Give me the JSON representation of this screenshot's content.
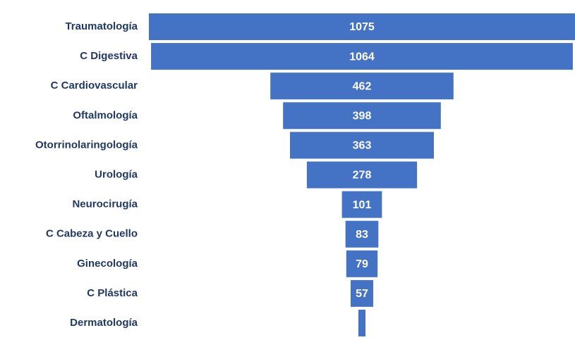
{
  "chart_data": {
    "type": "funnel",
    "categories": [
      "Traumatología",
      "C Digestiva",
      "C Cardiovascular",
      "Oftalmología",
      "Otorrinolaringología",
      "Urología",
      "Neurocirugía",
      "C Cabeza y Cuello",
      "Ginecología",
      "C Plástica",
      "Dermatología"
    ],
    "values": [
      1075,
      1064,
      462,
      398,
      363,
      278,
      101,
      83,
      79,
      57,
      18
    ],
    "color": "#4472c4"
  }
}
